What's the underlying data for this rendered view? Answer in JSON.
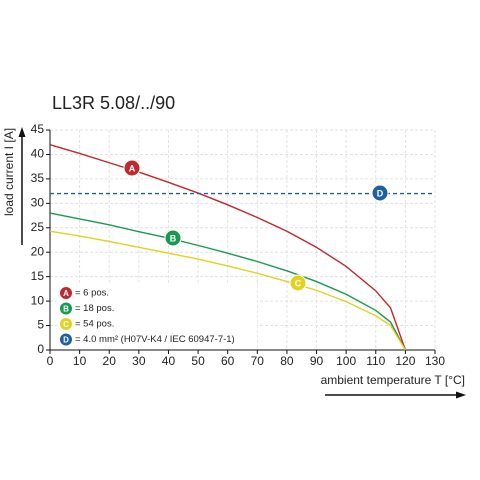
{
  "chart_data": {
    "type": "line",
    "title": "LL3R 5.08/../90",
    "x_label": "ambient temperature T [°C]",
    "y_label": "load current I [A]",
    "x": [
      0,
      10,
      20,
      30,
      40,
      50,
      60,
      70,
      80,
      90,
      100,
      110,
      115,
      120
    ],
    "series": [
      {
        "name": "A",
        "label": "= 6 pos.",
        "color": "#c0282d",
        "values": [
          42,
          40.2,
          38.3,
          36.4,
          34.3,
          32.1,
          29.7,
          27.1,
          24.3,
          21,
          17.1,
          12.1,
          8.6,
          0
        ]
      },
      {
        "name": "B",
        "label": "= 18 pos.",
        "color": "#1a9a50",
        "values": [
          28,
          26.8,
          25.6,
          24.2,
          22.9,
          21.4,
          19.8,
          18.1,
          16.2,
          14,
          11.4,
          8.1,
          5.7,
          0
        ]
      },
      {
        "name": "C",
        "label": "= 54 pos.",
        "color": "#e0d21e",
        "values": [
          24.3,
          23.3,
          22.2,
          21,
          19.8,
          18.6,
          17.2,
          15.7,
          14,
          12.2,
          9.9,
          7,
          5,
          0
        ]
      },
      {
        "name": "D",
        "label": "= 4.0 mm² (H07V-K4 / IEC 60947-7-1)",
        "color": "#1f5f9e",
        "dashed": true,
        "x": [
          0,
          130
        ],
        "values": [
          32,
          32
        ]
      }
    ],
    "xlim": [
      0,
      130
    ],
    "xticks": [
      0,
      10,
      20,
      30,
      40,
      50,
      60,
      70,
      80,
      90,
      100,
      110,
      120,
      130
    ],
    "ylim": [
      0,
      45
    ],
    "yticks": [
      0,
      5,
      10,
      15,
      20,
      25,
      30,
      35,
      40,
      45
    ],
    "grid": true
  }
}
